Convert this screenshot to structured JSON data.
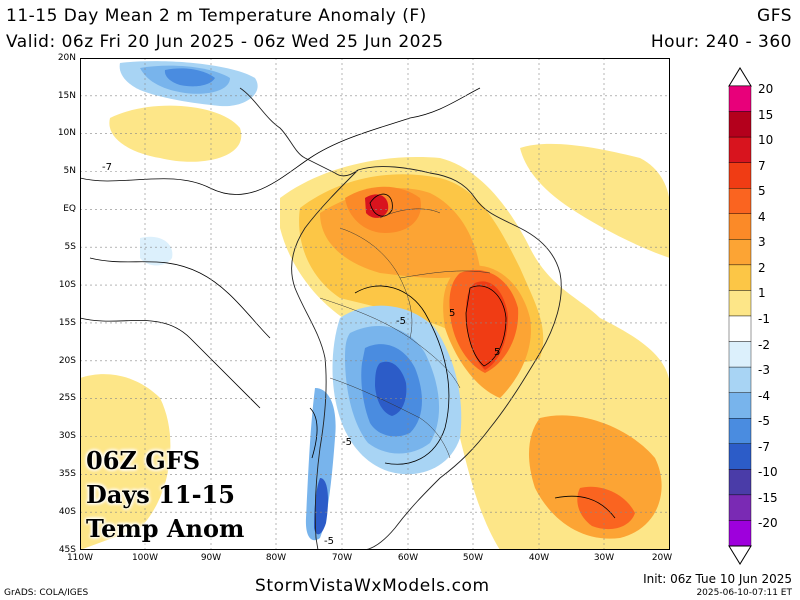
{
  "header": {
    "title": "11-15 Day Mean 2 m Temperature Anomaly (F)",
    "model": "GFS",
    "valid": "Valid: 06z Fri 20 Jun 2025 - 06z Wed 25 Jun 2025",
    "hour": "Hour: 240 - 360"
  },
  "overlay": {
    "line1": "06Z GFS",
    "line2": "Days 11-15",
    "line3": "Temp Anom"
  },
  "axes": {
    "lat_ticks": [
      "20N",
      "15N",
      "10N",
      "5N",
      "EQ",
      "5S",
      "10S",
      "15S",
      "20S",
      "25S",
      "30S",
      "35S",
      "40S",
      "45S"
    ],
    "lon_ticks": [
      "110W",
      "100W",
      "90W",
      "80W",
      "70W",
      "60W",
      "50W",
      "40W",
      "30W",
      "20W"
    ]
  },
  "map": {
    "contour_labels": [
      "-5",
      "-5",
      "-5",
      "5",
      "5",
      "-7"
    ]
  },
  "colorbar": {
    "labels": [
      "20",
      "15",
      "10",
      "7",
      "5",
      "4",
      "3",
      "2",
      "1",
      "-1",
      "-2",
      "-3",
      "-4",
      "-5",
      "-7",
      "-10",
      "-15",
      "-20"
    ],
    "colors": [
      "#e8007a",
      "#b4001c",
      "#d8141e",
      "#f03c14",
      "#fa6420",
      "#fb8a28",
      "#fca434",
      "#fcc646",
      "#fde688",
      "#ffffff",
      "#dcf0fc",
      "#a8d4f4",
      "#78b4ec",
      "#4a8ce0",
      "#2c5cc8",
      "#4a3ca8",
      "#7a2ab4",
      "#9e00dc"
    ]
  },
  "footer": {
    "site": "StormVistaWxModels.com",
    "init": "Init: 06z Tue 10 Jun 2025",
    "timestamp": "2025-06-10-07:11 ET",
    "credit": "GrADS: COLA/IGES"
  }
}
